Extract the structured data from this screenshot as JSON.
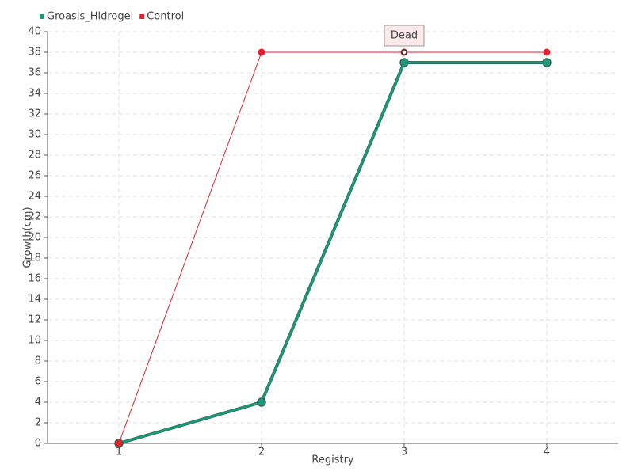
{
  "chart_data": {
    "type": "line",
    "x_label": "Registry",
    "y_label": "Growth(cm)",
    "categories": [
      "1",
      "2",
      "3",
      "4"
    ],
    "series": [
      {
        "name": "Groasis_Hidrogel",
        "color": "#1a9a7a",
        "values": [
          0,
          4,
          37,
          37
        ]
      },
      {
        "name": "Control",
        "color": "#e3212b",
        "values": [
          0,
          38,
          38,
          38
        ]
      }
    ],
    "annotations": [
      {
        "text": "Dead",
        "x": "3",
        "y": 38
      }
    ],
    "ylim": [
      0,
      40
    ],
    "yticks": [
      0,
      2,
      4,
      6,
      8,
      10,
      12,
      14,
      16,
      18,
      20,
      22,
      24,
      26,
      28,
      30,
      32,
      34,
      36,
      38,
      40
    ],
    "grid": true,
    "legend": "top-left"
  }
}
